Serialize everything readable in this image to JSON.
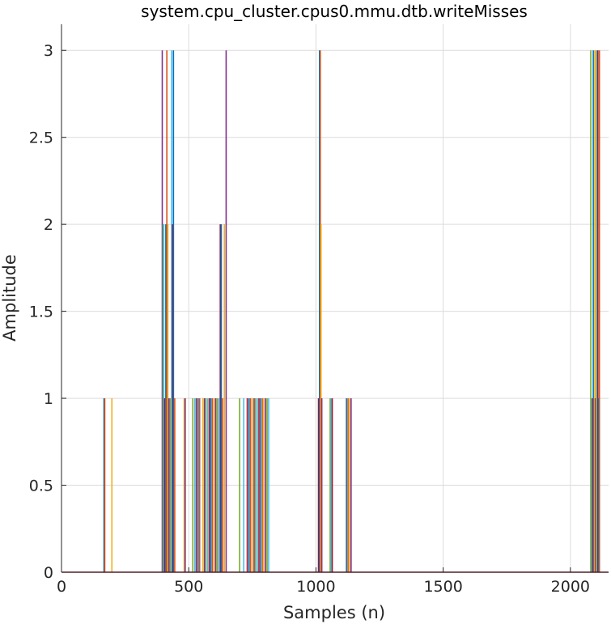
{
  "chart_data": {
    "type": "line",
    "title": "system.cpu_cluster.cpus0.mmu.dtb.writeMisses",
    "xlabel": "Samples (n)",
    "ylabel": "Amplitude",
    "xlim": [
      0,
      2150
    ],
    "ylim": [
      0,
      3.15
    ],
    "xticks": [
      0,
      500,
      1000,
      1500,
      2000
    ],
    "yticks": [
      0,
      0.5,
      1,
      1.5,
      2,
      2.5,
      3
    ],
    "xtick_labels": [
      "0",
      "500",
      "1000",
      "1500",
      "2000"
    ],
    "ytick_labels": [
      "0",
      "0.5",
      "1",
      "1.5",
      "2",
      "2.5",
      "3"
    ],
    "grid": true,
    "baseline": 0,
    "colors": [
      "#0072BD",
      "#D95319",
      "#EDB120",
      "#7E2F8E",
      "#77AC30",
      "#4DBEEE",
      "#A2142F"
    ],
    "spikes": [
      {
        "x": 167,
        "y": 1
      },
      {
        "x": 170,
        "y": 1
      },
      {
        "x": 198,
        "y": 1
      },
      {
        "x": 396,
        "y": 3
      },
      {
        "x": 399,
        "y": 2
      },
      {
        "x": 402,
        "y": 2
      },
      {
        "x": 405,
        "y": 1
      },
      {
        "x": 410,
        "y": 2
      },
      {
        "x": 414,
        "y": 3
      },
      {
        "x": 418,
        "y": 2
      },
      {
        "x": 422,
        "y": 1
      },
      {
        "x": 427,
        "y": 1
      },
      {
        "x": 433,
        "y": 3
      },
      {
        "x": 436,
        "y": 2
      },
      {
        "x": 440,
        "y": 3
      },
      {
        "x": 445,
        "y": 1
      },
      {
        "x": 482,
        "y": 1
      },
      {
        "x": 486,
        "y": 1
      },
      {
        "x": 516,
        "y": 1
      },
      {
        "x": 524,
        "y": 1
      },
      {
        "x": 530,
        "y": 1
      },
      {
        "x": 537,
        "y": 1
      },
      {
        "x": 543,
        "y": 1
      },
      {
        "x": 556,
        "y": 1
      },
      {
        "x": 562,
        "y": 1
      },
      {
        "x": 568,
        "y": 1
      },
      {
        "x": 575,
        "y": 1
      },
      {
        "x": 581,
        "y": 1
      },
      {
        "x": 587,
        "y": 1
      },
      {
        "x": 593,
        "y": 1
      },
      {
        "x": 600,
        "y": 1
      },
      {
        "x": 606,
        "y": 1
      },
      {
        "x": 612,
        "y": 1
      },
      {
        "x": 618,
        "y": 1
      },
      {
        "x": 624,
        "y": 2
      },
      {
        "x": 628,
        "y": 2
      },
      {
        "x": 633,
        "y": 1
      },
      {
        "x": 640,
        "y": 2
      },
      {
        "x": 647,
        "y": 3
      },
      {
        "x": 700,
        "y": 1
      },
      {
        "x": 716,
        "y": 1
      },
      {
        "x": 730,
        "y": 1
      },
      {
        "x": 737,
        "y": 1
      },
      {
        "x": 743,
        "y": 1
      },
      {
        "x": 750,
        "y": 1
      },
      {
        "x": 757,
        "y": 1
      },
      {
        "x": 763,
        "y": 1
      },
      {
        "x": 770,
        "y": 1
      },
      {
        "x": 776,
        "y": 1
      },
      {
        "x": 782,
        "y": 1
      },
      {
        "x": 789,
        "y": 1
      },
      {
        "x": 795,
        "y": 1
      },
      {
        "x": 802,
        "y": 1
      },
      {
        "x": 808,
        "y": 1
      },
      {
        "x": 814,
        "y": 1
      },
      {
        "x": 1010,
        "y": 1
      },
      {
        "x": 1014,
        "y": 3
      },
      {
        "x": 1017,
        "y": 3
      },
      {
        "x": 1020,
        "y": 2
      },
      {
        "x": 1023,
        "y": 1
      },
      {
        "x": 1056,
        "y": 1
      },
      {
        "x": 1060,
        "y": 1
      },
      {
        "x": 1064,
        "y": 1
      },
      {
        "x": 1120,
        "y": 1
      },
      {
        "x": 1126,
        "y": 1
      },
      {
        "x": 1132,
        "y": 1
      },
      {
        "x": 1138,
        "y": 1
      },
      {
        "x": 2080,
        "y": 3
      },
      {
        "x": 2084,
        "y": 1
      },
      {
        "x": 2087,
        "y": 1
      },
      {
        "x": 2090,
        "y": 3
      },
      {
        "x": 2093,
        "y": 1
      },
      {
        "x": 2096,
        "y": 3
      },
      {
        "x": 2099,
        "y": 1
      },
      {
        "x": 2102,
        "y": 3
      },
      {
        "x": 2105,
        "y": 3
      },
      {
        "x": 2108,
        "y": 3
      },
      {
        "x": 2111,
        "y": 1
      },
      {
        "x": 2114,
        "y": 3
      }
    ]
  }
}
